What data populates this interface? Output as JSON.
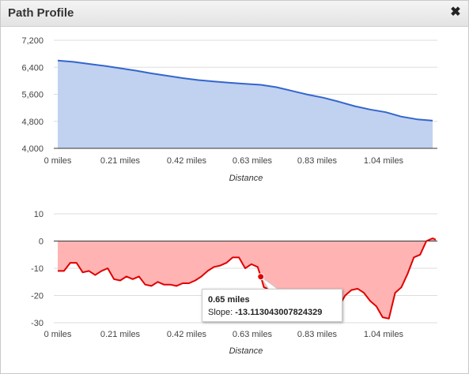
{
  "window": {
    "title": "Path Profile",
    "close_icon": "close-icon"
  },
  "colors": {
    "elevation_line": "#3366cc",
    "elevation_fill": "#c1d1f0",
    "slope_line": "#e00000",
    "slope_fill": "#ffb3b3"
  },
  "chart_data": [
    {
      "type": "area",
      "xlabel": "Distance",
      "ylabel": "",
      "ylim": [
        4000,
        7200
      ],
      "yticks": [
        "7,200",
        "6,400",
        "5,600",
        "4,800",
        "4,000"
      ],
      "xticks": [
        "0 miles",
        "0.21 miles",
        "0.42 miles",
        "0.63 miles",
        "0.83 miles",
        "1.04 miles"
      ],
      "grid": true,
      "x": [
        0,
        0.05,
        0.1,
        0.15,
        0.2,
        0.25,
        0.3,
        0.35,
        0.4,
        0.45,
        0.5,
        0.55,
        0.6,
        0.65,
        0.7,
        0.75,
        0.8,
        0.85,
        0.9,
        0.95,
        1.0,
        1.05,
        1.1,
        1.15,
        1.2
      ],
      "series": [
        {
          "values": [
            6600,
            6560,
            6500,
            6440,
            6370,
            6300,
            6220,
            6150,
            6080,
            6020,
            5980,
            5940,
            5910,
            5880,
            5810,
            5700,
            5590,
            5500,
            5380,
            5250,
            5150,
            5070,
            4940,
            4860,
            4820
          ]
        }
      ]
    },
    {
      "type": "area",
      "xlabel": "Distance",
      "ylabel": "",
      "ylim": [
        -30,
        10
      ],
      "yticks": [
        "10",
        "0",
        "-10",
        "-20",
        "-30"
      ],
      "xticks": [
        "0 miles",
        "0.21 miles",
        "0.42 miles",
        "0.63 miles",
        "0.83 miles",
        "1.04 miles"
      ],
      "grid": true,
      "x": [
        0,
        0.02,
        0.04,
        0.06,
        0.08,
        0.1,
        0.12,
        0.14,
        0.16,
        0.18,
        0.2,
        0.22,
        0.24,
        0.26,
        0.28,
        0.3,
        0.32,
        0.34,
        0.36,
        0.38,
        0.4,
        0.42,
        0.44,
        0.46,
        0.48,
        0.5,
        0.52,
        0.54,
        0.56,
        0.58,
        0.6,
        0.62,
        0.63,
        0.64,
        0.65,
        0.66,
        0.68,
        0.7,
        0.72,
        0.74,
        0.76,
        0.78,
        0.8,
        0.82,
        0.84,
        0.86,
        0.88,
        0.9,
        0.92,
        0.94,
        0.96,
        0.98,
        1.0,
        1.02,
        1.04,
        1.06,
        1.08,
        1.1,
        1.12,
        1.14,
        1.16,
        1.18,
        1.2,
        1.21
      ],
      "series": [
        {
          "values": [
            -11,
            -11,
            -8,
            -8,
            -11.5,
            -11,
            -12.5,
            -11,
            -10,
            -14,
            -14.5,
            -13,
            -14,
            -13,
            -16,
            -16.5,
            -15,
            -16,
            -16,
            -16.5,
            -15.5,
            -15.5,
            -14.5,
            -13,
            -11,
            -9.5,
            -9,
            -8,
            -6,
            -6,
            -10,
            -8.5,
            -9,
            -9.5,
            -13.1,
            -17,
            -18,
            -18,
            -18.5,
            -19,
            -20,
            -20.5,
            -21,
            -22,
            -23,
            -24,
            -25,
            -24,
            -20,
            -18,
            -17.5,
            -19,
            -22,
            -24,
            -28,
            -28.5,
            -19,
            -17,
            -12,
            -6,
            -5,
            0,
            1,
            0.5
          ]
        }
      ],
      "tooltip": {
        "title": "0.65 miles",
        "label": "Slope:",
        "value": "-13.113043007824329"
      }
    }
  ]
}
